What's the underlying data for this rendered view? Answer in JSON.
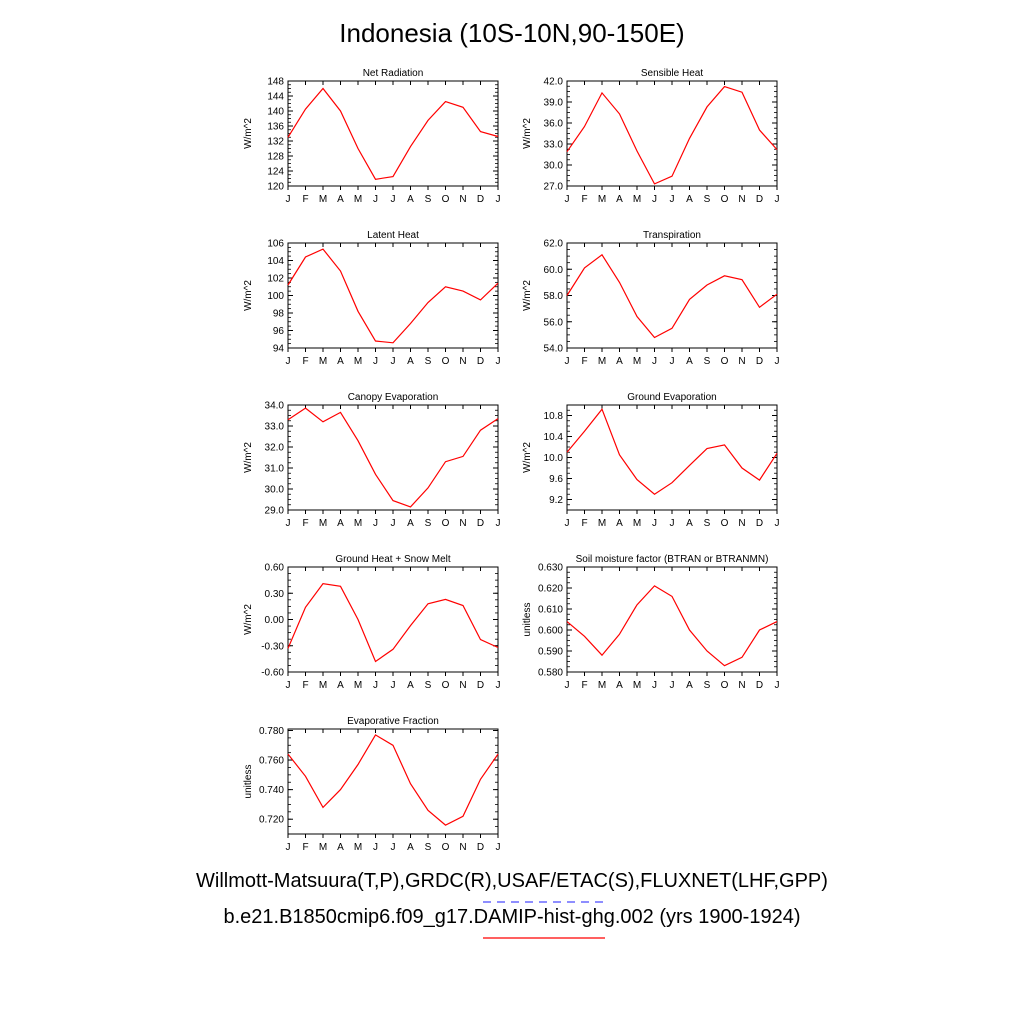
{
  "page": {
    "title": "Indonesia (10S-10N,90-150E)"
  },
  "legend": {
    "obs_label": "Willmott-Matsuura(T,P),GRDC(R),USAF/ETAC(S),FLUXNET(LHF,GPP)",
    "model_label": "b.e21.B1850cmip6.f09_g17.DAMIP-hist-ghg.002 (yrs 1900-1924)",
    "obs_color": "#4a4aff",
    "model_color": "#ff0000"
  },
  "chart_data": [
    {
      "type": "line",
      "title": "Net Radiation",
      "ylabel": "W/m^2",
      "categories": [
        "J",
        "F",
        "M",
        "A",
        "M",
        "J",
        "J",
        "A",
        "S",
        "O",
        "N",
        "D",
        "J"
      ],
      "yticks": [
        "120",
        "124",
        "128",
        "132",
        "136",
        "140",
        "144",
        "148"
      ],
      "ylim": [
        120,
        148
      ],
      "values": [
        133,
        140.5,
        146,
        140,
        130,
        121.8,
        122.5,
        130.5,
        137.5,
        142.5,
        141,
        134.5,
        133.2
      ],
      "line_color": "#ff0000"
    },
    {
      "type": "line",
      "title": "Sensible Heat",
      "ylabel": "W/m^2",
      "categories": [
        "J",
        "F",
        "M",
        "A",
        "M",
        "J",
        "J",
        "A",
        "S",
        "O",
        "N",
        "D",
        "J"
      ],
      "yticks": [
        "27.0",
        "30.0",
        "33.0",
        "36.0",
        "39.0",
        "42.0"
      ],
      "ylim": [
        27,
        42
      ],
      "values": [
        31.9,
        35.5,
        40.3,
        37.3,
        32.0,
        27.3,
        28.4,
        33.8,
        38.3,
        41.2,
        40.4,
        35.0,
        32.2
      ],
      "line_color": "#ff0000"
    },
    {
      "type": "line",
      "title": "Latent Heat",
      "ylabel": "W/m^2",
      "categories": [
        "J",
        "F",
        "M",
        "A",
        "M",
        "J",
        "J",
        "A",
        "S",
        "O",
        "N",
        "D",
        "J"
      ],
      "yticks": [
        "94",
        "96",
        "98",
        "100",
        "102",
        "104",
        "106"
      ],
      "ylim": [
        94,
        106
      ],
      "values": [
        101.2,
        104.4,
        105.3,
        102.8,
        98.2,
        94.8,
        94.6,
        96.8,
        99.2,
        101.0,
        100.5,
        99.5,
        101.4
      ],
      "line_color": "#ff0000"
    },
    {
      "type": "line",
      "title": "Transpiration",
      "ylabel": "W/m^2",
      "categories": [
        "J",
        "F",
        "M",
        "A",
        "M",
        "J",
        "J",
        "A",
        "S",
        "O",
        "N",
        "D",
        "J"
      ],
      "yticks": [
        "54.0",
        "56.0",
        "58.0",
        "60.0",
        "62.0"
      ],
      "ylim": [
        54,
        62
      ],
      "values": [
        58.0,
        60.1,
        61.1,
        59.0,
        56.4,
        54.8,
        55.5,
        57.7,
        58.8,
        59.5,
        59.2,
        57.1,
        58.1
      ],
      "line_color": "#ff0000"
    },
    {
      "type": "line",
      "title": "Canopy Evaporation",
      "ylabel": "W/m^2",
      "categories": [
        "J",
        "F",
        "M",
        "A",
        "M",
        "J",
        "J",
        "A",
        "S",
        "O",
        "N",
        "D",
        "J"
      ],
      "yticks": [
        "29.0",
        "30.0",
        "31.0",
        "32.0",
        "33.0",
        "34.0"
      ],
      "ylim": [
        29,
        34
      ],
      "values": [
        33.3,
        33.85,
        33.2,
        33.65,
        32.3,
        30.7,
        29.45,
        29.15,
        30.05,
        31.3,
        31.55,
        32.8,
        33.35
      ],
      "line_color": "#ff0000"
    },
    {
      "type": "line",
      "title": "Ground Evaporation",
      "ylabel": "W/m^2",
      "categories": [
        "J",
        "F",
        "M",
        "A",
        "M",
        "J",
        "J",
        "A",
        "S",
        "O",
        "N",
        "D",
        "J"
      ],
      "yticks": [
        "9.2",
        "9.6",
        "10.0",
        "10.4",
        "10.8"
      ],
      "ylim": [
        9.0,
        11.0
      ],
      "values": [
        10.1,
        10.5,
        10.92,
        10.05,
        9.58,
        9.3,
        9.52,
        9.85,
        10.17,
        10.24,
        9.8,
        9.57,
        10.08
      ],
      "line_color": "#ff0000"
    },
    {
      "type": "line",
      "title": "Ground Heat + Snow Melt",
      "ylabel": "W/m^2",
      "categories": [
        "J",
        "F",
        "M",
        "A",
        "M",
        "J",
        "J",
        "A",
        "S",
        "O",
        "N",
        "D",
        "J"
      ],
      "yticks": [
        "-0.60",
        "-0.30",
        "0.00",
        "0.30",
        "0.60"
      ],
      "ylim": [
        -0.6,
        0.6
      ],
      "values": [
        -0.33,
        0.14,
        0.41,
        0.38,
        0.0,
        -0.48,
        -0.34,
        -0.07,
        0.18,
        0.23,
        0.16,
        -0.23,
        -0.32
      ],
      "line_color": "#ff0000"
    },
    {
      "type": "line",
      "title": "Soil moisture factor (BTRAN or BTRANMN)",
      "ylabel": "unitless",
      "categories": [
        "J",
        "F",
        "M",
        "A",
        "M",
        "J",
        "J",
        "A",
        "S",
        "O",
        "N",
        "D",
        "J"
      ],
      "yticks": [
        "0.580",
        "0.590",
        "0.600",
        "0.610",
        "0.620",
        "0.630"
      ],
      "ylim": [
        0.58,
        0.63
      ],
      "values": [
        0.604,
        0.597,
        0.588,
        0.598,
        0.612,
        0.621,
        0.616,
        0.6,
        0.59,
        0.583,
        0.587,
        0.6,
        0.604
      ],
      "line_color": "#ff0000"
    },
    {
      "type": "line",
      "title": "Evaporative Fraction",
      "ylabel": "unitless",
      "categories": [
        "J",
        "F",
        "M",
        "A",
        "M",
        "J",
        "J",
        "A",
        "S",
        "O",
        "N",
        "D",
        "J"
      ],
      "yticks": [
        "0.720",
        "0.740",
        "0.760",
        "0.780"
      ],
      "ylim": [
        0.71,
        0.781
      ],
      "values": [
        0.764,
        0.749,
        0.728,
        0.74,
        0.757,
        0.777,
        0.77,
        0.744,
        0.726,
        0.716,
        0.722,
        0.747,
        0.764
      ],
      "line_color": "#ff0000"
    }
  ]
}
